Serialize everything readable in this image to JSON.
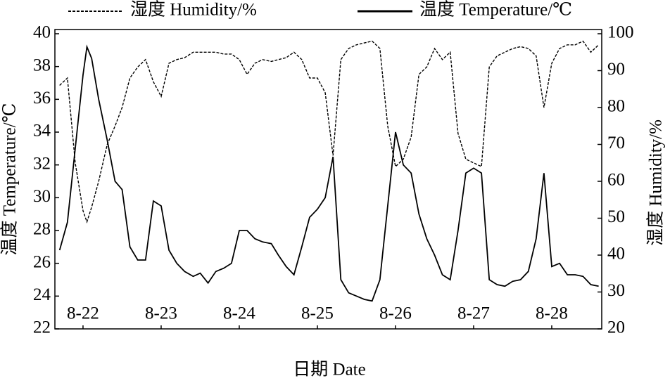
{
  "chart_data": {
    "type": "line",
    "x_label": "日期 Date",
    "y_label": "温度 Temperature/℃",
    "y2_label": "湿度 Humidity/%",
    "x": [
      21.7,
      21.8,
      21.9,
      22.0,
      22.05,
      22.11,
      22.2,
      22.31,
      22.41,
      22.5,
      22.6,
      22.7,
      22.8,
      22.9,
      23.0,
      23.1,
      23.2,
      23.3,
      23.41,
      23.5,
      23.6,
      23.7,
      23.8,
      23.9,
      24.0,
      24.1,
      24.2,
      24.3,
      24.41,
      24.5,
      24.6,
      24.7,
      24.8,
      24.9,
      25.0,
      25.1,
      25.2,
      25.3,
      25.4,
      25.5,
      25.6,
      25.7,
      25.8,
      25.9,
      26.0,
      26.1,
      26.2,
      26.3,
      26.4,
      26.5,
      26.6,
      26.7,
      26.8,
      26.9,
      27.0,
      27.1,
      27.2,
      27.3,
      27.4,
      27.5,
      27.6,
      27.7,
      27.8,
      27.9,
      28.0,
      28.1,
      28.2,
      28.3,
      28.4,
      28.5,
      28.6
    ],
    "xlim": [
      21.64,
      28.64
    ],
    "xticks": [
      {
        "value": 22,
        "label": "8-22"
      },
      {
        "value": 23,
        "label": "8-23"
      },
      {
        "value": 24,
        "label": "8-24"
      },
      {
        "value": 25,
        "label": "8-25"
      },
      {
        "value": 26,
        "label": "8-26"
      },
      {
        "value": 27,
        "label": "8-27"
      },
      {
        "value": 28,
        "label": "8-28"
      }
    ],
    "ylim": [
      22,
      40
    ],
    "yticks": [
      22,
      24,
      26,
      28,
      30,
      32,
      34,
      36,
      38,
      40
    ],
    "y2lim": [
      20,
      100
    ],
    "y2ticks": [
      20,
      30,
      40,
      50,
      60,
      70,
      80,
      90,
      100
    ],
    "legend": "top",
    "series": [
      {
        "name": "湿度 Humidity/%",
        "color": "#000000",
        "style": "dashed",
        "axis": "y2",
        "values": [
          86,
          88,
          65,
          52,
          49,
          53,
          60,
          70,
          75,
          80,
          88,
          91,
          93,
          87,
          83,
          92,
          93,
          93.5,
          95,
          95,
          95,
          95,
          94.5,
          94.5,
          93,
          89,
          92,
          93,
          92.5,
          93,
          93.5,
          95,
          93,
          88,
          88,
          84,
          67,
          93,
          96,
          97,
          97.5,
          98,
          96,
          75,
          64,
          66,
          72,
          89,
          91,
          96,
          93,
          95,
          73,
          66,
          65,
          64,
          91,
          94,
          95,
          96,
          96.5,
          96,
          94,
          80,
          92,
          96,
          97,
          97,
          98,
          95,
          97
        ]
      },
      {
        "name": "温度 Temperature/℃",
        "color": "#000000",
        "style": "solid",
        "axis": "y",
        "values": [
          26.8,
          28.5,
          33,
          37.5,
          39.2,
          38.5,
          36,
          33.5,
          31,
          30.5,
          27,
          26.2,
          26.2,
          29.8,
          29.5,
          26.8,
          26,
          25.5,
          25.2,
          25.4,
          24.8,
          25.5,
          25.7,
          26,
          28,
          28,
          27.5,
          27.3,
          27.2,
          26.5,
          25.8,
          25.3,
          27,
          28.8,
          29.3,
          30,
          32.5,
          25,
          24.2,
          24,
          23.8,
          23.7,
          25,
          29.5,
          34,
          32,
          31.5,
          29,
          27.5,
          26.5,
          25.3,
          25,
          28,
          31.5,
          31.8,
          31.5,
          25,
          24.7,
          24.6,
          24.9,
          25,
          25.5,
          27.5,
          31.5,
          25.8,
          26,
          25.3,
          25.3,
          25.2,
          24.7,
          24.6
        ]
      }
    ]
  }
}
